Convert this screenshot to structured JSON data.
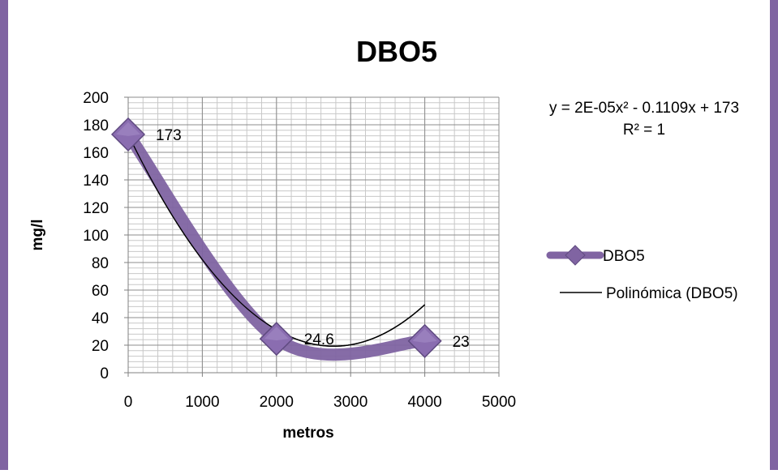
{
  "chart_data": {
    "type": "scatter",
    "title": "DBO5",
    "xlabel": "metros",
    "ylabel": "mg/l",
    "xlim": [
      0,
      5000
    ],
    "ylim": [
      0,
      200
    ],
    "x_ticks": [
      0,
      1000,
      2000,
      3000,
      4000,
      5000
    ],
    "y_ticks": [
      0,
      20,
      40,
      60,
      80,
      100,
      120,
      140,
      160,
      180,
      200
    ],
    "grid": true,
    "legend_position": "right",
    "series": [
      {
        "name": "DBO5",
        "x": [
          0,
          2000,
          4000
        ],
        "y": [
          173,
          24.6,
          23
        ],
        "data_labels": [
          "173",
          "24.6",
          "23"
        ],
        "style": "smoothed line with diamond markers",
        "color": "#8064a2"
      },
      {
        "name": "Polinómica (DBO5)",
        "kind": "polynomial trendline",
        "coefficients": [
          2e-05,
          -0.1109,
          173
        ],
        "color": "#000000"
      }
    ],
    "equation": "y = 2E-05x² - 0.1109x + 173",
    "r_squared": "R² = 1"
  }
}
